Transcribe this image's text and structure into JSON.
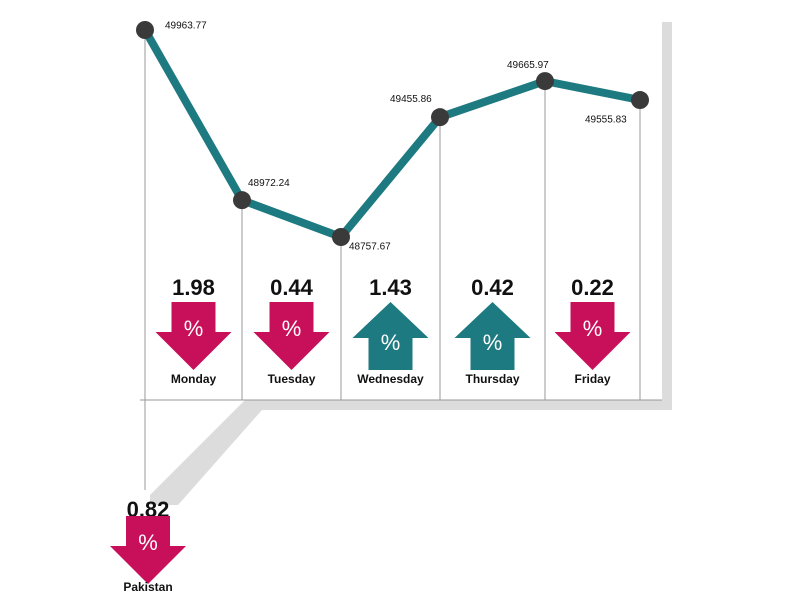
{
  "chart_data": {
    "type": "line",
    "categories": [
      null,
      null,
      null,
      null,
      null,
      null
    ],
    "series": [
      {
        "color": "#1d7a80",
        "values": [
          49963.77,
          48972.24,
          48757.67,
          49455.86,
          49665.97,
          49555.83
        ]
      }
    ],
    "changes": [
      {
        "label": "Monday",
        "value": 1.98,
        "direction": "down"
      },
      {
        "label": "Tuesday",
        "value": 0.44,
        "direction": "down"
      },
      {
        "label": "Wednesday",
        "value": 1.43,
        "direction": "up"
      },
      {
        "label": "Thursday",
        "value": 0.42,
        "direction": "up"
      },
      {
        "label": "Friday",
        "value": 0.22,
        "direction": "down"
      }
    ],
    "pakistan": {
      "label": "Pakistan",
      "value": 0.82,
      "direction": "down"
    },
    "symbol": "%",
    "colors": {
      "up": "#1d7a80",
      "down": "#c8105a"
    }
  }
}
